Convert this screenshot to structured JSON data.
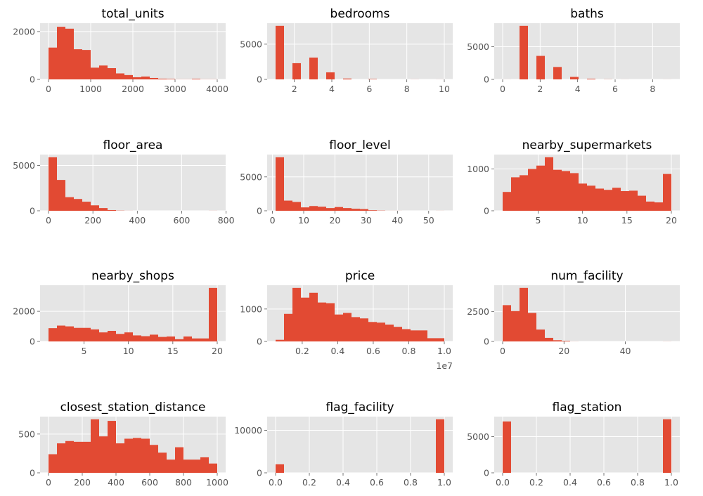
{
  "style": {
    "panel_bg": "#E5E5E5",
    "grid": "#FFFFFF",
    "bar": "#E24A33",
    "text": "#555555",
    "title": "#000000"
  },
  "chart_data": [
    {
      "type": "bar",
      "title": "total_units",
      "bin_edges": [
        0,
        200,
        400,
        600,
        800,
        1000,
        1200,
        1400,
        1600,
        1800,
        2000,
        2200,
        2400,
        2600,
        2800,
        3000,
        3200,
        3400,
        3600,
        3800,
        4000
      ],
      "values": [
        1330,
        2200,
        2120,
        1260,
        1230,
        490,
        580,
        470,
        250,
        180,
        90,
        120,
        60,
        30,
        20,
        5,
        5,
        25,
        5,
        5
      ],
      "xticks": [
        "0",
        "1000",
        "2000",
        "3000",
        "4000"
      ],
      "xtick_values": [
        0,
        1000,
        2000,
        3000,
        4000
      ],
      "yticks": [
        "0",
        "2000"
      ],
      "ytick_values": [
        0,
        2000
      ],
      "xlim": [
        -200,
        4200
      ],
      "ylim": [
        0,
        2350
      ],
      "grid": true
    },
    {
      "type": "bar",
      "title": "bedrooms",
      "bin_edges": [
        1,
        1.45,
        1.9,
        2.35,
        2.8,
        3.25,
        3.7,
        4.15,
        4.6,
        5.05,
        5.5,
        5.95,
        6.4,
        6.85,
        7.3,
        7.75,
        8.2,
        8.65,
        9.1,
        9.55,
        10
      ],
      "values": [
        7600,
        0,
        2300,
        0,
        3100,
        0,
        1000,
        0,
        120,
        0,
        0,
        60,
        0,
        0,
        0,
        0,
        10,
        0,
        0,
        5
      ],
      "xticks": [
        "2",
        "4",
        "6",
        "8",
        "10"
      ],
      "xtick_values": [
        2,
        4,
        6,
        8,
        10
      ],
      "yticks": [
        "0",
        "5000"
      ],
      "ytick_values": [
        0,
        5000
      ],
      "xlim": [
        0.55,
        10.45
      ],
      "ylim": [
        0,
        7980
      ],
      "grid": true
    },
    {
      "type": "bar",
      "title": "baths",
      "bin_edges": [
        0,
        0.45,
        0.9,
        1.35,
        1.8,
        2.25,
        2.7,
        3.15,
        3.6,
        4.05,
        4.5,
        4.95,
        5.4,
        5.85,
        6.3,
        6.75,
        7.2,
        7.65,
        8.1,
        8.55,
        9
      ],
      "values": [
        5,
        0,
        8200,
        0,
        3600,
        0,
        1900,
        0,
        380,
        0,
        100,
        0,
        20,
        0,
        5,
        0,
        0,
        0,
        0,
        5
      ],
      "xticks": [
        "0",
        "2",
        "4",
        "6",
        "8"
      ],
      "xtick_values": [
        0,
        2,
        4,
        6,
        8
      ],
      "yticks": [
        "0",
        "5000"
      ],
      "ytick_values": [
        0,
        5000
      ],
      "xlim": [
        -0.45,
        9.45
      ],
      "ylim": [
        0,
        8610
      ],
      "grid": true
    },
    {
      "type": "bar",
      "title": "floor_area",
      "bin_edges": [
        0,
        38,
        76,
        114,
        152,
        190,
        228,
        266,
        304,
        342,
        380,
        418,
        456,
        494,
        532,
        570,
        608,
        646,
        684,
        722,
        760
      ],
      "values": [
        5900,
        3400,
        1500,
        1300,
        1000,
        600,
        300,
        80,
        20,
        5,
        0,
        0,
        0,
        0,
        0,
        0,
        0,
        0,
        0,
        5
      ],
      "xticks": [
        "0",
        "200",
        "400",
        "600",
        "800"
      ],
      "xtick_values": [
        0,
        200,
        400,
        600,
        800
      ],
      "yticks": [
        "0",
        "5000"
      ],
      "ytick_values": [
        0,
        5000
      ],
      "xlim": [
        -38,
        798
      ],
      "ylim": [
        0,
        6200
      ],
      "grid": true
    },
    {
      "type": "bar",
      "title": "floor_level",
      "bin_edges": [
        1,
        3.7,
        6.4,
        9.1,
        11.8,
        14.5,
        17.2,
        19.9,
        22.6,
        25.3,
        28,
        30.7,
        33.4,
        36.1,
        38.8,
        41.5,
        44.2,
        46.9,
        49.6,
        52.3,
        55
      ],
      "values": [
        7900,
        1500,
        1300,
        500,
        700,
        600,
        400,
        550,
        400,
        300,
        250,
        80,
        30,
        5,
        5,
        0,
        0,
        0,
        0,
        5
      ],
      "xticks": [
        "0",
        "10",
        "20",
        "30",
        "40",
        "50"
      ],
      "xtick_values": [
        0,
        10,
        20,
        30,
        40,
        50
      ],
      "yticks": [
        "0",
        "5000"
      ],
      "ytick_values": [
        0,
        5000
      ],
      "xlim": [
        -1.7,
        57.7
      ],
      "ylim": [
        0,
        8300
      ],
      "grid": true
    },
    {
      "type": "bar",
      "title": "nearby_supermarkets",
      "bin_edges": [
        1,
        1.95,
        2.9,
        3.85,
        4.8,
        5.75,
        6.7,
        7.65,
        8.6,
        9.55,
        10.5,
        11.45,
        12.4,
        13.35,
        14.3,
        15.25,
        16.2,
        17.15,
        18.1,
        19.05,
        20
      ],
      "values": [
        450,
        800,
        850,
        1000,
        1080,
        1280,
        980,
        950,
        900,
        650,
        600,
        530,
        500,
        550,
        470,
        480,
        360,
        220,
        200,
        880
      ],
      "xticks": [
        "5",
        "10",
        "15",
        "20"
      ],
      "xtick_values": [
        5,
        10,
        15,
        20
      ],
      "yticks": [
        "0",
        "1000"
      ],
      "ytick_values": [
        0,
        1000
      ],
      "xlim": [
        0.05,
        20.95
      ],
      "ylim": [
        0,
        1344
      ],
      "grid": true
    },
    {
      "type": "bar",
      "title": "nearby_shops",
      "bin_edges": [
        1,
        1.95,
        2.9,
        3.85,
        4.8,
        5.75,
        6.7,
        7.65,
        8.6,
        9.55,
        10.5,
        11.45,
        12.4,
        13.35,
        14.3,
        15.25,
        16.2,
        17.15,
        18.1,
        19.05,
        20
      ],
      "values": [
        880,
        1050,
        1000,
        900,
        900,
        800,
        600,
        700,
        500,
        600,
        400,
        350,
        450,
        300,
        330,
        150,
        330,
        200,
        200,
        3550
      ],
      "xticks": [
        "5",
        "10",
        "15",
        "20"
      ],
      "xtick_values": [
        5,
        10,
        15,
        20
      ],
      "yticks": [
        "0",
        "2000"
      ],
      "ytick_values": [
        0,
        2000
      ],
      "xlim": [
        0.05,
        20.95
      ],
      "ylim": [
        0,
        3730
      ],
      "grid": true
    },
    {
      "type": "bar",
      "title": "price",
      "bin_edges": [
        0.05,
        0.0975,
        0.145,
        0.1925,
        0.24,
        0.2875,
        0.335,
        0.3825,
        0.43,
        0.4775,
        0.525,
        0.5725,
        0.62,
        0.6675,
        0.715,
        0.7625,
        0.81,
        0.8575,
        0.905,
        0.9525,
        1.0
      ],
      "values": [
        50,
        850,
        1650,
        1350,
        1500,
        1200,
        1180,
        830,
        880,
        750,
        710,
        600,
        580,
        520,
        450,
        380,
        340,
        340,
        100,
        100
      ],
      "xticks": [
        "0.2",
        "0.4",
        "0.6",
        "0.8",
        "1.0"
      ],
      "xtick_values": [
        0.2,
        0.4,
        0.6,
        0.8,
        1.0
      ],
      "x_offset_label": "1e7",
      "yticks": [
        "0",
        "1000"
      ],
      "ytick_values": [
        0,
        1000
      ],
      "xlim": [
        0.0025,
        1.0475
      ],
      "ylim": [
        0,
        1733
      ],
      "grid": true
    },
    {
      "type": "bar",
      "title": "num_facility",
      "bin_edges": [
        0,
        2.75,
        5.5,
        8.25,
        11,
        13.75,
        16.5,
        19.25,
        22,
        24.75,
        27.5,
        30.25,
        33,
        35.75,
        38.5,
        41.25,
        44,
        46.75,
        49.5,
        52.25,
        55
      ],
      "values": [
        3050,
        2550,
        4500,
        2400,
        1000,
        300,
        100,
        50,
        5,
        0,
        0,
        0,
        0,
        0,
        0,
        0,
        0,
        0,
        0,
        5
      ],
      "xticks": [
        "0",
        "20",
        "40"
      ],
      "xtick_values": [
        0,
        20,
        40
      ],
      "yticks": [
        "0",
        "2500"
      ],
      "ytick_values": [
        0,
        2500
      ],
      "xlim": [
        -2.75,
        57.75
      ],
      "ylim": [
        0,
        4725
      ],
      "grid": true
    },
    {
      "type": "bar",
      "title": "closest_station_distance",
      "bin_edges": [
        0,
        50,
        100,
        150,
        200,
        250,
        300,
        350,
        400,
        450,
        500,
        550,
        600,
        650,
        700,
        750,
        800,
        850,
        900,
        950,
        1000
      ],
      "values": [
        240,
        380,
        410,
        400,
        400,
        690,
        470,
        670,
        380,
        440,
        450,
        440,
        360,
        260,
        170,
        330,
        170,
        170,
        200,
        120
      ],
      "xticks": [
        "0",
        "200",
        "400",
        "600",
        "800",
        "1000"
      ],
      "xtick_values": [
        0,
        200,
        400,
        600,
        800,
        1000
      ],
      "yticks": [
        "0",
        "500"
      ],
      "ytick_values": [
        0,
        500
      ],
      "xlim": [
        -50,
        1050
      ],
      "ylim": [
        0,
        725
      ],
      "grid": true
    },
    {
      "type": "bar",
      "title": "flag_facility",
      "bin_edges": [
        0,
        0.05,
        0.1,
        0.15,
        0.2,
        0.25,
        0.3,
        0.35,
        0.4,
        0.45,
        0.5,
        0.55,
        0.6,
        0.65,
        0.7,
        0.75,
        0.8,
        0.85,
        0.9,
        0.95,
        1.0
      ],
      "values": [
        2000,
        0,
        0,
        0,
        0,
        0,
        0,
        0,
        0,
        0,
        0,
        0,
        0,
        0,
        0,
        0,
        0,
        0,
        0,
        12600
      ],
      "xticks": [
        "0.0",
        "0.2",
        "0.4",
        "0.6",
        "0.8",
        "1.0"
      ],
      "xtick_values": [
        0,
        0.2,
        0.4,
        0.6,
        0.8,
        1.0
      ],
      "yticks": [
        "0",
        "10000"
      ],
      "ytick_values": [
        0,
        10000
      ],
      "xlim": [
        -0.05,
        1.05
      ],
      "ylim": [
        0,
        13230
      ],
      "grid": true
    },
    {
      "type": "bar",
      "title": "flag_station",
      "bin_edges": [
        0,
        0.05,
        0.1,
        0.15,
        0.2,
        0.25,
        0.3,
        0.35,
        0.4,
        0.45,
        0.5,
        0.55,
        0.6,
        0.65,
        0.7,
        0.75,
        0.8,
        0.85,
        0.9,
        0.95,
        1.0
      ],
      "values": [
        7100,
        0,
        0,
        0,
        0,
        0,
        0,
        0,
        0,
        0,
        0,
        0,
        0,
        0,
        0,
        0,
        0,
        0,
        0,
        7400
      ],
      "xticks": [
        "0.0",
        "0.2",
        "0.4",
        "0.6",
        "0.8",
        "1.0"
      ],
      "xtick_values": [
        0,
        0.2,
        0.4,
        0.6,
        0.8,
        1.0
      ],
      "yticks": [
        "0",
        "5000"
      ],
      "ytick_values": [
        0,
        5000
      ],
      "xlim": [
        -0.05,
        1.05
      ],
      "ylim": [
        0,
        7770
      ],
      "grid": true
    }
  ]
}
